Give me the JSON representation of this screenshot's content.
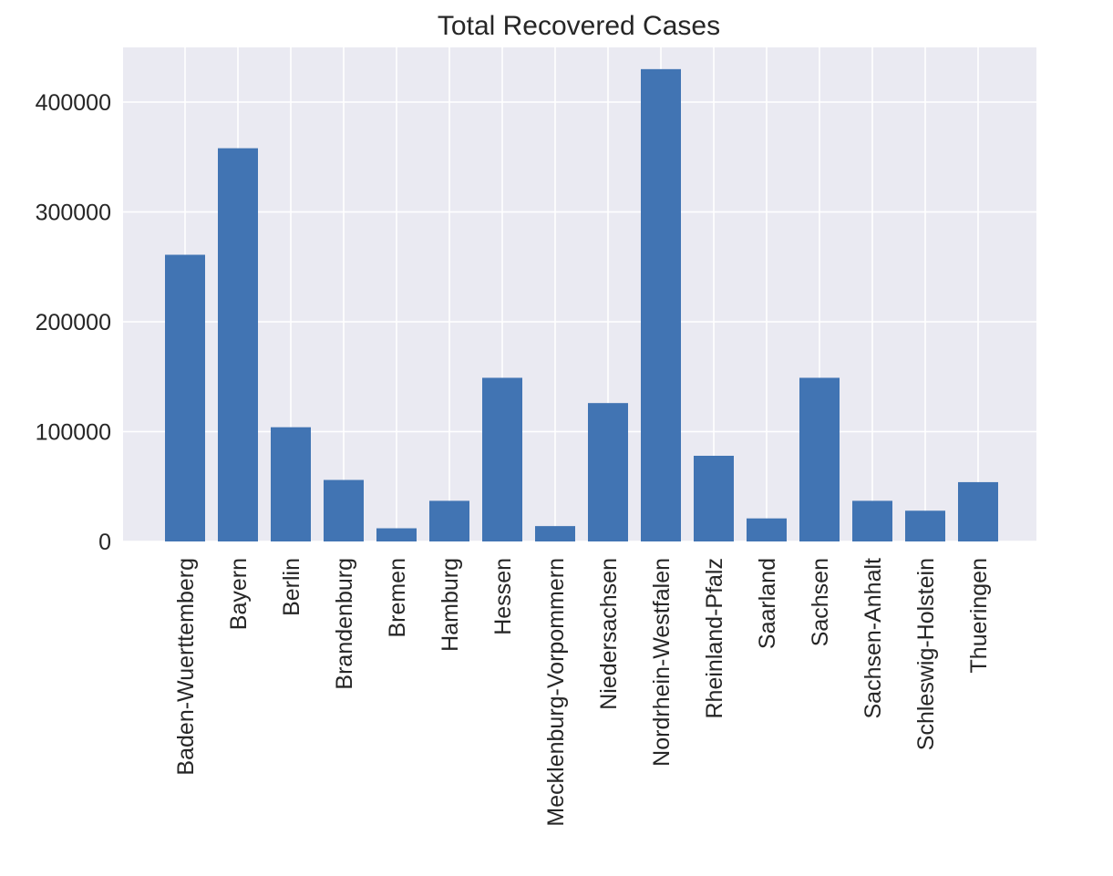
{
  "chart_data": {
    "type": "bar",
    "title": "Total Recovered Cases",
    "xlabel": "",
    "ylabel": "",
    "categories": [
      "Baden-Wuerttemberg",
      "Bayern",
      "Berlin",
      "Brandenburg",
      "Bremen",
      "Hamburg",
      "Hessen",
      "Mecklenburg-Vorpommern",
      "Niedersachsen",
      "Nordrhein-Westfalen",
      "Rheinland-Pfalz",
      "Saarland",
      "Sachsen",
      "Sachsen-Anhalt",
      "Schleswig-Holstein",
      "Thueringen"
    ],
    "values": [
      261000,
      358000,
      104000,
      56000,
      12000,
      37000,
      149000,
      14000,
      126000,
      430000,
      78000,
      21000,
      149000,
      37000,
      28000,
      54000
    ],
    "yticks": [
      0,
      100000,
      200000,
      300000,
      400000
    ],
    "ytick_labels": [
      "0",
      "100000",
      "200000",
      "300000",
      "400000"
    ],
    "ylim": [
      0,
      450000
    ],
    "grid": true,
    "legend": "none",
    "colors": {
      "bar": "#4174b3",
      "background": "#eaeaf2",
      "grid": "#ffffff"
    }
  }
}
